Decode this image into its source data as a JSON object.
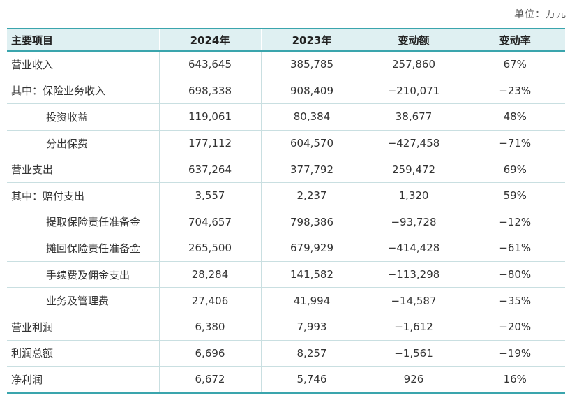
{
  "unit_label": "单位：万元",
  "headers": [
    "主要项目",
    "2024年",
    "2023年",
    "变动额",
    "变动率"
  ],
  "rows": [
    {
      "item": "营业收入",
      "y2024": "643,645",
      "y2023": "385,785",
      "change": "257,860",
      "rate": "67%"
    },
    {
      "item": "其中：保险业务收入",
      "y2024": "698,338",
      "y2023": "908,409",
      "change": "−210,071",
      "rate": "−23%"
    },
    {
      "item": "投资收益",
      "y2024": "119,061",
      "y2023": "80,384",
      "change": "38,677",
      "rate": "48%"
    },
    {
      "item": "分出保费",
      "y2024": "177,112",
      "y2023": "604,570",
      "change": "−427,458",
      "rate": "−71%"
    },
    {
      "item": "营业支出",
      "y2024": "637,264",
      "y2023": "377,792",
      "change": "259,472",
      "rate": "69%"
    },
    {
      "item": "其中：赔付支出",
      "y2024": "3,557",
      "y2023": "2,237",
      "change": "1,320",
      "rate": "59%"
    },
    {
      "item": "提取保险责任准备金",
      "y2024": "704,657",
      "y2023": "798,386",
      "change": "−93,728",
      "rate": "−12%"
    },
    {
      "item": "摊回保险责任准备金",
      "y2024": "265,500",
      "y2023": "679,929",
      "change": "−414,428",
      "rate": "−61%"
    },
    {
      "item": "手续费及佣金支出",
      "y2024": "28,284",
      "y2023": "141,582",
      "change": "−113,298",
      "rate": "−80%"
    },
    {
      "item": "业务及管理费",
      "y2024": "27,406",
      "y2023": "41,994",
      "change": "−14,587",
      "rate": "−35%"
    },
    {
      "item": "营业利润",
      "y2024": "6,380",
      "y2023": "7,993",
      "change": "−1,612",
      "rate": "−20%"
    },
    {
      "item": "利润总额",
      "y2024": "6,696",
      "y2023": "8,257",
      "change": "−1,561",
      "rate": "−19%"
    },
    {
      "item": "净利润",
      "y2024": "6,672",
      "y2023": "5,746",
      "change": "926",
      "rate": "16%"
    }
  ]
}
